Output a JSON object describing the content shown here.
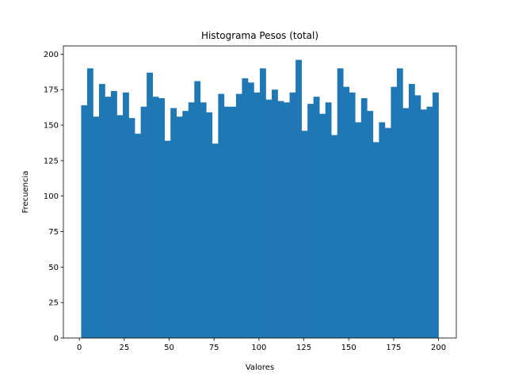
{
  "chart_data": {
    "type": "bar",
    "title": "Histograma Pesos (total)",
    "xlabel": "Valores",
    "ylabel": "Frecuencia",
    "xlim": [
      -8.9,
      209.9
    ],
    "ylim": [
      0,
      205.8
    ],
    "xticks": [
      0,
      25,
      50,
      75,
      100,
      125,
      150,
      175,
      200
    ],
    "yticks": [
      0,
      25,
      50,
      75,
      100,
      125,
      150,
      175,
      200
    ],
    "bin_start": 1,
    "bin_end": 200,
    "color": "#1f77b4",
    "values": [
      164,
      190,
      156,
      179,
      170,
      174,
      157,
      173,
      155,
      144,
      163,
      187,
      170,
      169,
      139,
      162,
      156,
      160,
      166,
      181,
      166,
      159,
      137,
      172,
      163,
      163,
      172,
      183,
      180,
      173,
      190,
      168,
      175,
      167,
      166,
      173,
      196,
      146,
      165,
      170,
      158,
      166,
      143,
      190,
      177,
      173,
      152,
      169,
      160,
      138,
      152,
      148,
      177,
      190,
      162,
      179,
      171,
      161,
      163,
      173
    ]
  }
}
